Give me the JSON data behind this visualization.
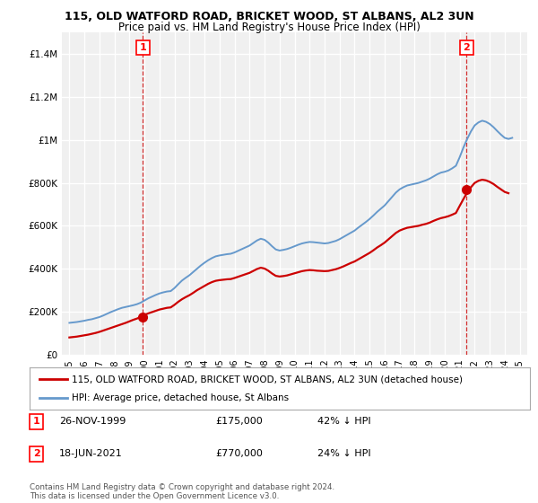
{
  "title1": "115, OLD WATFORD ROAD, BRICKET WOOD, ST ALBANS, AL2 3UN",
  "title2": "Price paid vs. HM Land Registry's House Price Index (HPI)",
  "legend_label1": "115, OLD WATFORD ROAD, BRICKET WOOD, ST ALBANS, AL2 3UN (detached house)",
  "legend_label2": "HPI: Average price, detached house, St Albans",
  "annotation1_date": "26-NOV-1999",
  "annotation1_price": "£175,000",
  "annotation1_hpi": "42% ↓ HPI",
  "annotation2_date": "18-JUN-2021",
  "annotation2_price": "£770,000",
  "annotation2_hpi": "24% ↓ HPI",
  "footer": "Contains HM Land Registry data © Crown copyright and database right 2024.\nThis data is licensed under the Open Government Licence v3.0.",
  "sale1_year": 1999.9,
  "sale1_value": 175000,
  "sale2_year": 2021.46,
  "sale2_value": 770000,
  "line1_color": "#cc0000",
  "line2_color": "#6699cc",
  "background_color": "#f0f0f0",
  "ylim_max": 1500000,
  "xlim_start": 1994.5,
  "xlim_end": 2025.5,
  "years_hpi": [
    1995,
    1995.25,
    1995.5,
    1995.75,
    1996,
    1996.25,
    1996.5,
    1996.75,
    1997,
    1997.25,
    1997.5,
    1997.75,
    1998,
    1998.25,
    1998.5,
    1998.75,
    1999,
    1999.25,
    1999.5,
    1999.75,
    2000,
    2000.25,
    2000.5,
    2000.75,
    2001,
    2001.25,
    2001.5,
    2001.75,
    2002,
    2002.25,
    2002.5,
    2002.75,
    2003,
    2003.25,
    2003.5,
    2003.75,
    2004,
    2004.25,
    2004.5,
    2004.75,
    2005,
    2005.25,
    2005.5,
    2005.75,
    2006,
    2006.25,
    2006.5,
    2006.75,
    2007,
    2007.25,
    2007.5,
    2007.75,
    2008,
    2008.25,
    2008.5,
    2008.75,
    2009,
    2009.25,
    2009.5,
    2009.75,
    2010,
    2010.25,
    2010.5,
    2010.75,
    2011,
    2011.25,
    2011.5,
    2011.75,
    2012,
    2012.25,
    2012.5,
    2012.75,
    2013,
    2013.25,
    2013.5,
    2013.75,
    2014,
    2014.25,
    2014.5,
    2014.75,
    2015,
    2015.25,
    2015.5,
    2015.75,
    2016,
    2016.25,
    2016.5,
    2016.75,
    2017,
    2017.25,
    2017.5,
    2017.75,
    2018,
    2018.25,
    2018.5,
    2018.75,
    2019,
    2019.25,
    2019.5,
    2019.75,
    2020,
    2020.25,
    2020.5,
    2020.75,
    2021,
    2021.25,
    2021.5,
    2021.75,
    2022,
    2022.25,
    2022.5,
    2022.75,
    2023,
    2023.25,
    2023.5,
    2023.75,
    2024,
    2024.25,
    2024.5
  ],
  "hpi_values": [
    148000,
    150000,
    152000,
    155000,
    158000,
    162000,
    165000,
    170000,
    175000,
    182000,
    190000,
    198000,
    205000,
    212000,
    218000,
    222000,
    226000,
    230000,
    235000,
    242000,
    252000,
    262000,
    270000,
    278000,
    285000,
    290000,
    294000,
    296000,
    310000,
    328000,
    345000,
    358000,
    370000,
    385000,
    400000,
    415000,
    428000,
    440000,
    450000,
    458000,
    462000,
    465000,
    468000,
    470000,
    476000,
    484000,
    492000,
    500000,
    508000,
    520000,
    532000,
    540000,
    535000,
    522000,
    505000,
    490000,
    485000,
    488000,
    492000,
    498000,
    505000,
    512000,
    518000,
    522000,
    525000,
    524000,
    522000,
    520000,
    518000,
    520000,
    525000,
    530000,
    538000,
    548000,
    558000,
    568000,
    578000,
    592000,
    605000,
    618000,
    632000,
    648000,
    665000,
    680000,
    695000,
    715000,
    735000,
    755000,
    770000,
    780000,
    788000,
    792000,
    796000,
    800000,
    806000,
    812000,
    820000,
    830000,
    840000,
    848000,
    852000,
    858000,
    868000,
    880000,
    920000,
    965000,
    1005000,
    1040000,
    1068000,
    1082000,
    1090000,
    1085000,
    1075000,
    1060000,
    1042000,
    1025000,
    1010000,
    1005000,
    1010000
  ],
  "years_red": [
    1995,
    1995.25,
    1995.5,
    1995.75,
    1996,
    1996.25,
    1996.5,
    1996.75,
    1997,
    1997.25,
    1997.5,
    1997.75,
    1998,
    1998.25,
    1998.5,
    1998.75,
    1999,
    1999.25,
    1999.5,
    1999.75,
    2000,
    2000.25,
    2000.5,
    2000.75,
    2001,
    2001.25,
    2001.5,
    2001.75,
    2002,
    2002.25,
    2002.5,
    2002.75,
    2003,
    2003.25,
    2003.5,
    2003.75,
    2004,
    2004.25,
    2004.5,
    2004.75,
    2005,
    2005.25,
    2005.5,
    2005.75,
    2006,
    2006.25,
    2006.5,
    2006.75,
    2007,
    2007.25,
    2007.5,
    2007.75,
    2008,
    2008.25,
    2008.5,
    2008.75,
    2009,
    2009.25,
    2009.5,
    2009.75,
    2010,
    2010.25,
    2010.5,
    2010.75,
    2011,
    2011.25,
    2011.5,
    2011.75,
    2012,
    2012.25,
    2012.5,
    2012.75,
    2013,
    2013.25,
    2013.5,
    2013.75,
    2014,
    2014.25,
    2014.5,
    2014.75,
    2015,
    2015.25,
    2015.5,
    2015.75,
    2016,
    2016.25,
    2016.5,
    2016.75,
    2017,
    2017.25,
    2017.5,
    2017.75,
    2018,
    2018.25,
    2018.5,
    2018.75,
    2019,
    2019.25,
    2019.5,
    2019.75,
    2020,
    2020.25,
    2020.5,
    2020.75,
    2021,
    2021.25,
    2021.5,
    2021.75,
    2022,
    2022.25,
    2022.5,
    2022.75,
    2023,
    2023.25,
    2023.5,
    2023.75,
    2024,
    2024.25
  ],
  "red_values": [
    80000,
    82000,
    84000,
    87000,
    90000,
    93000,
    97000,
    101000,
    106000,
    112000,
    118000,
    124000,
    130000,
    136000,
    142000,
    148000,
    155000,
    162000,
    168000,
    175000,
    185000,
    192000,
    198000,
    204000,
    210000,
    214000,
    218000,
    220000,
    232000,
    246000,
    258000,
    268000,
    277000,
    288000,
    300000,
    310000,
    320000,
    330000,
    338000,
    344000,
    347000,
    349000,
    351000,
    352000,
    357000,
    363000,
    369000,
    375000,
    381000,
    390000,
    399000,
    405000,
    401000,
    391000,
    378000,
    367000,
    364000,
    366000,
    369000,
    374000,
    379000,
    384000,
    389000,
    392000,
    394000,
    393000,
    391000,
    390000,
    389000,
    390000,
    394000,
    398000,
    404000,
    411000,
    419000,
    427000,
    434000,
    444000,
    454000,
    464000,
    474000,
    486000,
    499000,
    510000,
    522000,
    537000,
    552000,
    567000,
    578000,
    585000,
    591000,
    594000,
    597000,
    600000,
    605000,
    609000,
    615000,
    623000,
    630000,
    636000,
    640000,
    645000,
    652000,
    660000,
    693000,
    725000,
    755000,
    780000,
    800000,
    810000,
    815000,
    812000,
    805000,
    795000,
    782000,
    770000,
    758000,
    752000
  ]
}
